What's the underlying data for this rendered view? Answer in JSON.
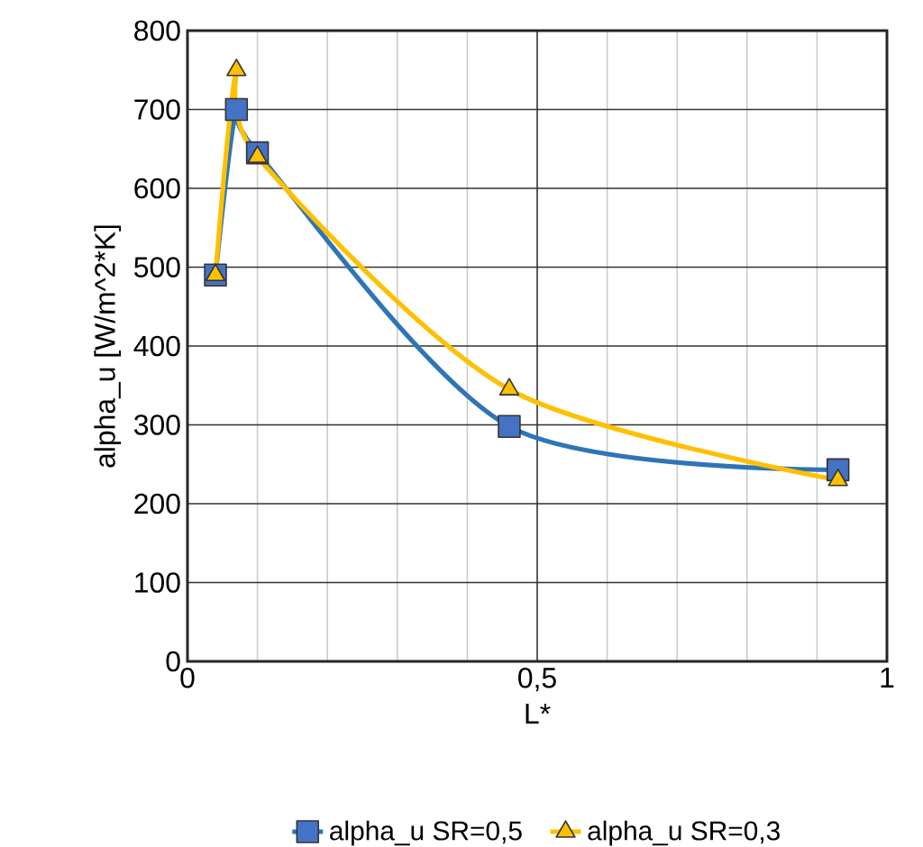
{
  "chart_data": {
    "type": "line",
    "xlabel": "L*",
    "ylabel": "alpha_u [W/m^2*K]",
    "xlim": [
      0,
      1
    ],
    "xticks": [
      0,
      {
        "value": 0.5,
        "label": "0,5"
      },
      1
    ],
    "ylim": [
      0,
      800
    ],
    "yticks": [
      0,
      100,
      200,
      300,
      400,
      500,
      600,
      700,
      800
    ],
    "grid": true,
    "legend": "bottom",
    "line_style": "solid",
    "series": [
      {
        "name": "alpha_u SR=0,5",
        "color": "#2e75b6",
        "marker": "square",
        "x": [
          0.04,
          0.07,
          0.1,
          0.46,
          0.93
        ],
        "values": [
          490,
          700,
          645,
          298,
          243
        ]
      },
      {
        "name": "alpha_u SR=0,3",
        "color": "#ffc000",
        "marker": "triangle",
        "x": [
          0.04,
          0.07,
          0.1,
          0.46,
          0.93
        ],
        "values": [
          490,
          750,
          640,
          345,
          230
        ]
      }
    ]
  }
}
